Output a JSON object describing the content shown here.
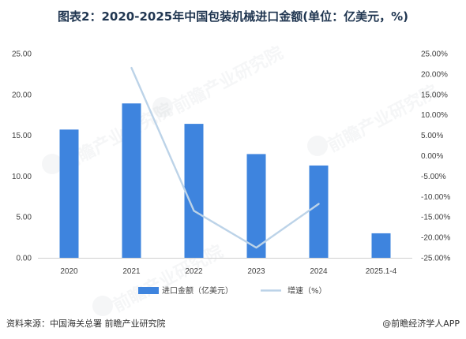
{
  "chart_data": {
    "type": "bar",
    "title": "图表2：2020-2025年中国包装机械进口金额(单位：亿美元，%)",
    "categories": [
      "2020",
      "2021",
      "2022",
      "2023",
      "2024",
      "2025.1-4"
    ],
    "series": [
      {
        "name": "进口金额（亿美元）",
        "type": "bar",
        "axis": "left",
        "values": [
          15.7,
          18.9,
          16.4,
          12.7,
          11.3,
          3.0
        ]
      },
      {
        "name": "增速（%）",
        "type": "line",
        "axis": "right",
        "values": [
          null,
          21.5,
          -13.5,
          -22.5,
          -11.8,
          null
        ]
      }
    ],
    "y_left": {
      "ylim": [
        0,
        25
      ],
      "ticks": [
        "0.00",
        "5.00",
        "10.00",
        "15.00",
        "20.00",
        "25.00"
      ]
    },
    "y_right": {
      "ylim": [
        -25,
        25
      ],
      "ticks": [
        "-25.00%",
        "-20.00%",
        "-15.00%",
        "-10.00%",
        "-5.00%",
        "0.00%",
        "5.00%",
        "10.00%",
        "15.00%",
        "20.00%",
        "25.00%"
      ]
    },
    "legend_position": "bottom",
    "grid": false,
    "colors": {
      "bar": "#3e84de",
      "line": "#bcd3e8",
      "title": "#1f3550"
    }
  },
  "footer": {
    "source": "资料来源：中国海关总署 前瞻产业研究院",
    "credit": "@前瞻经济学人APP"
  }
}
